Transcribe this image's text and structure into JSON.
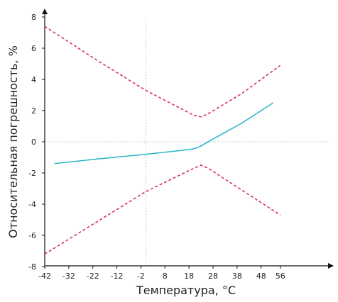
{
  "chart_data": {
    "type": "line",
    "title": "",
    "xlabel": "Температура, °С",
    "ylabel": "Относительная погрешность, %",
    "xlim": [
      -42,
      60
    ],
    "ylim": [
      -8,
      8
    ],
    "x_ticks": [
      -42,
      -32,
      -22,
      -12,
      -2,
      8,
      18,
      28,
      38,
      48,
      56
    ],
    "y_ticks": [
      -8,
      -6,
      -4,
      -2,
      0,
      2,
      4,
      6,
      8
    ],
    "x_tick_labels": [
      "-42",
      "-32",
      "-22",
      "-12",
      "-2",
      "8",
      "18",
      "28",
      "38",
      "48",
      "56"
    ],
    "y_tick_labels": [
      "-8",
      "-6",
      "-4",
      "-2",
      "0",
      "2",
      "4",
      "6",
      "8"
    ],
    "grid": false,
    "reference_lines": [
      {
        "axis": "x",
        "value": 0,
        "style": "dotted"
      },
      {
        "axis": "y",
        "value": 0,
        "style": "dotted"
      }
    ],
    "series": [
      {
        "color": "#26b5c6",
        "style": "solid",
        "x": [
          -38,
          -20,
          0,
          15,
          20,
          22,
          30,
          40,
          53
        ],
        "y": [
          -1.4,
          -1.1,
          -0.8,
          -0.55,
          -0.45,
          -0.35,
          0.35,
          1.2,
          2.5
        ]
      },
      {
        "color": "#d6245f",
        "style": "dashed",
        "x": [
          -42,
          -20,
          0,
          20,
          23,
          26,
          40,
          56
        ],
        "y": [
          7.4,
          5.2,
          3.3,
          1.7,
          1.6,
          1.8,
          3.1,
          4.9
        ]
      },
      {
        "color": "#d6245f",
        "style": "dashed",
        "x": [
          -42,
          -20,
          0,
          20,
          23,
          26,
          40,
          56
        ],
        "y": [
          -7.2,
          -5.1,
          -3.2,
          -1.7,
          -1.5,
          -1.7,
          -3.1,
          -4.7
        ]
      }
    ]
  }
}
